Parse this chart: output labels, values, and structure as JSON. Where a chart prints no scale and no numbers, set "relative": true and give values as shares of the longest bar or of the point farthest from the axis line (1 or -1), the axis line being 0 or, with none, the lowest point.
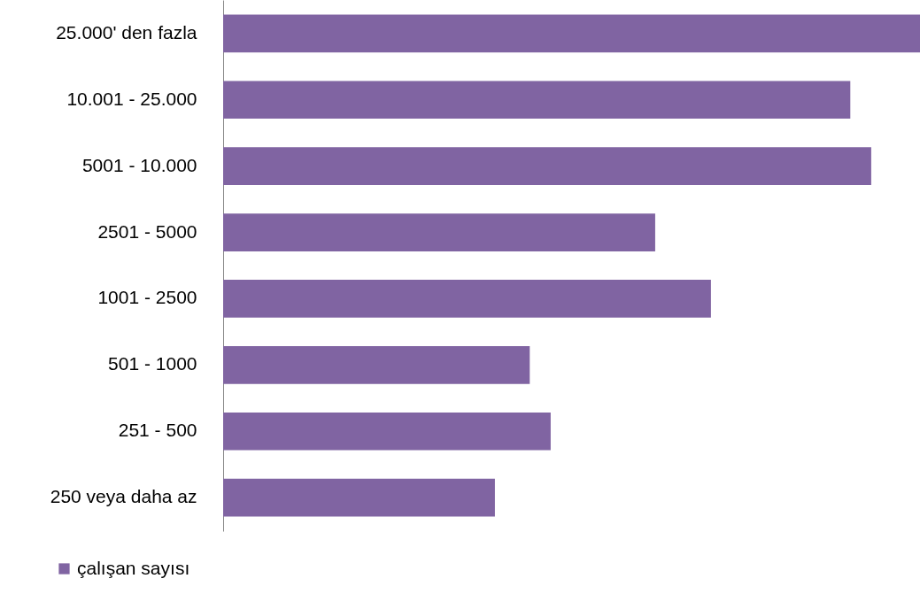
{
  "chart_data": {
    "type": "bar",
    "orientation": "horizontal",
    "relative": true,
    "legend": "bottom left",
    "categories": [
      "25.000' den fazla",
      "10.001 - 25.000",
      "5001 - 10.000",
      "2501 - 5000",
      "1001 - 2500",
      "501 - 1000",
      "251 - 500",
      "250 veya daha az"
    ],
    "series": [
      {
        "name": "çalışan sayısı",
        "color": "#8064a2",
        "values": [
          1,
          0.9,
          0.93,
          0.62,
          0.7,
          0.44,
          0.47,
          0.39
        ]
      }
    ]
  }
}
